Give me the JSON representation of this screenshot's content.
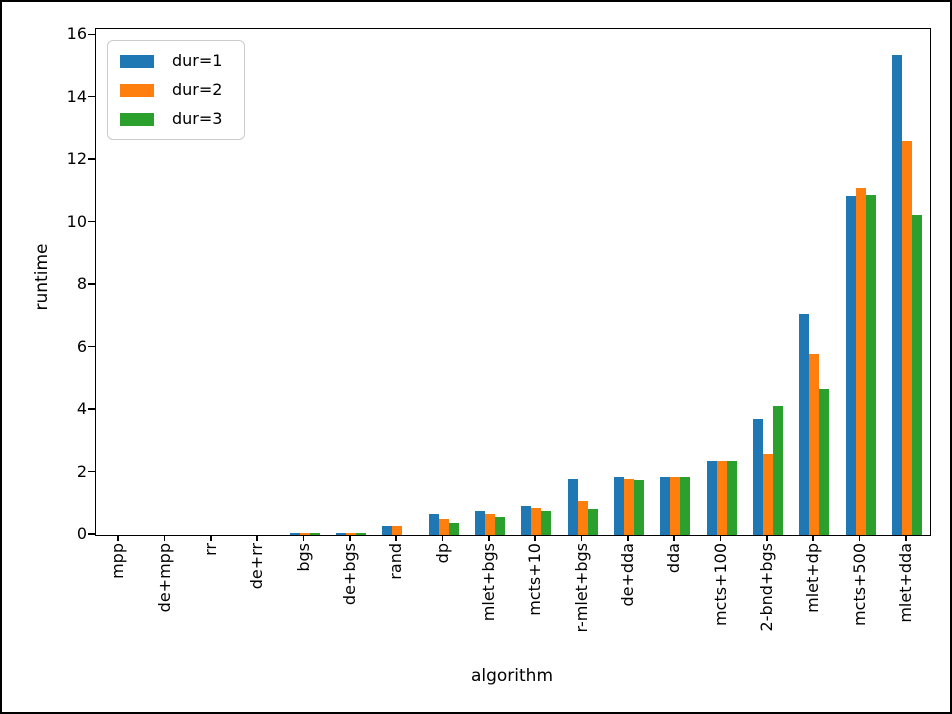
{
  "figure": {
    "background": "#ffffff",
    "border_color": "#000000"
  },
  "chart_data": {
    "type": "bar",
    "title": "",
    "xlabel": "algorithm",
    "ylabel": "runtime",
    "categories": [
      "mpp",
      "de+mpp",
      "rr",
      "de+rr",
      "bgs",
      "de+bgs",
      "rand",
      "dp",
      "mlet+bgs",
      "mcts+10",
      "r-mlet+bgs",
      "de+dda",
      "dda",
      "mcts+100",
      "2-bnd+bgs",
      "mlet+dp",
      "mcts+500",
      "mlet+dda"
    ],
    "series": [
      {
        "name": "dur=1",
        "color": "#1f77b4",
        "values": [
          0,
          0,
          0,
          0,
          0.08,
          0.07,
          0.28,
          0.66,
          0.76,
          0.92,
          1.78,
          1.86,
          1.87,
          2.37,
          3.71,
          7.06,
          10.85,
          15.38
        ]
      },
      {
        "name": "dur=2",
        "color": "#ff7f0e",
        "values": [
          0,
          0,
          0,
          0,
          0.06,
          0.05,
          0.3,
          0.5,
          0.66,
          0.85,
          1.08,
          1.8,
          1.87,
          2.37,
          2.6,
          5.78,
          11.12,
          12.6
        ]
      },
      {
        "name": "dur=3",
        "color": "#2ca02c",
        "values": [
          0,
          0,
          0,
          0,
          0.07,
          0.05,
          0.0,
          0.37,
          0.57,
          0.76,
          0.82,
          1.75,
          1.85,
          2.37,
          4.12,
          4.69,
          10.9,
          10.26
        ]
      }
    ],
    "yticks": [
      0,
      2,
      4,
      6,
      8,
      10,
      12,
      14,
      16
    ],
    "ylim": [
      0,
      16.2
    ],
    "grid": false,
    "legend_position": "upper left"
  }
}
